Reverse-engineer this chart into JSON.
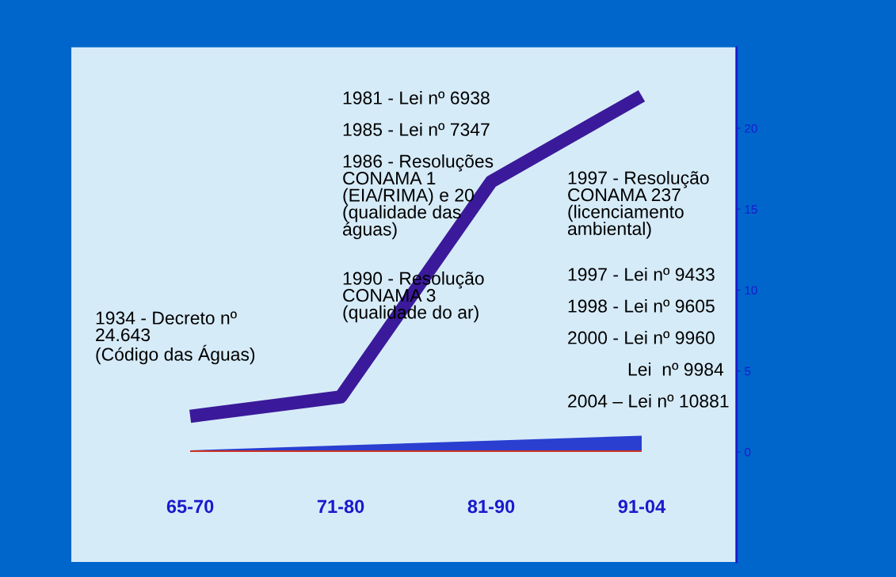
{
  "chart_data": {
    "type": "line",
    "categories": [
      "65-70",
      "71-80",
      "81-90",
      "91-04"
    ],
    "series": [
      {
        "type": "area",
        "color": "#2a3fd0",
        "values": [
          0.1,
          0.4,
          0.7,
          1.0
        ]
      },
      {
        "type": "area",
        "color": "#d03020",
        "values": [
          0.1,
          0.1,
          0.1,
          0.1
        ]
      },
      {
        "color": "#3a1a9a",
        "values": [
          2.2,
          3.4,
          16.7,
          22.0
        ]
      }
    ],
    "ylim": [
      -6.8,
      25
    ],
    "yticks": [
      0,
      5,
      10,
      15,
      20
    ],
    "annotations": [
      "1934 - Decreto nº\n24.643\n(Código das Águas)",
      "1981 - Lei nº 6938",
      "1985 - Lei nº 7347",
      "1986 - Resoluções\nCONAMA 1\n(EIA/RIMA) e 20\n(qualidade das\náguas)",
      "1990 - Resolução\nCONAMA 3\n(qualidade do ar)",
      "1997 - Resolução\nCONAMA 237\n(licenciamento\nambiental)",
      "1997 - Lei nº 9433",
      "1998 - Lei nº 9605",
      "2000 - Lei nº 9960",
      "Lei  nº 9984",
      "2004 – Lei nº 10881"
    ],
    "grid": false,
    "legend": false,
    "marker": "none",
    "line_style": "solid"
  }
}
